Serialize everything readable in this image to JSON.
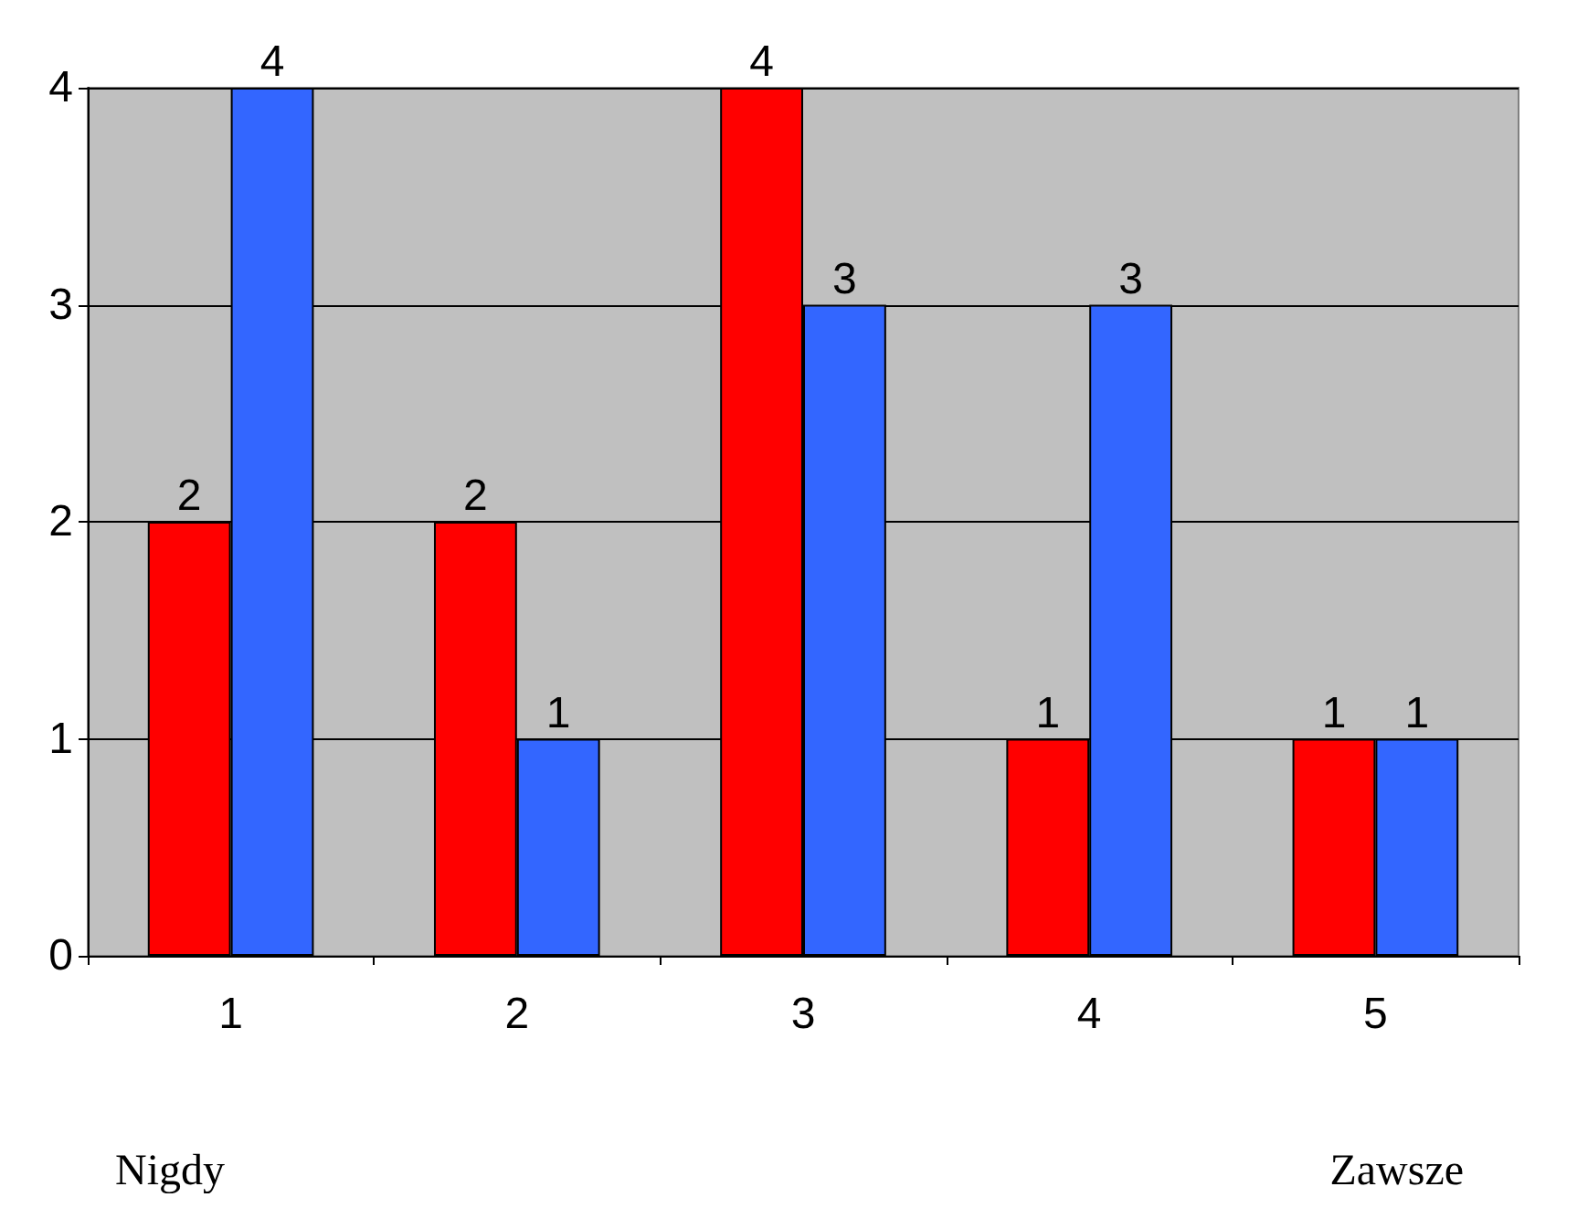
{
  "chart_data": {
    "type": "bar",
    "categories": [
      "1",
      "2",
      "3",
      "4",
      "5"
    ],
    "series": [
      {
        "color": "#ff0000",
        "values": [
          2,
          2,
          4,
          1,
          1
        ]
      },
      {
        "color": "#3366ff",
        "values": [
          4,
          1,
          3,
          3,
          1
        ]
      }
    ],
    "ylim": [
      0,
      4
    ],
    "yticks": [
      0,
      1,
      2,
      3,
      4
    ],
    "grid": "y",
    "data_labels": true,
    "annotations": [
      "Nigdy",
      "Zawsze"
    ]
  }
}
